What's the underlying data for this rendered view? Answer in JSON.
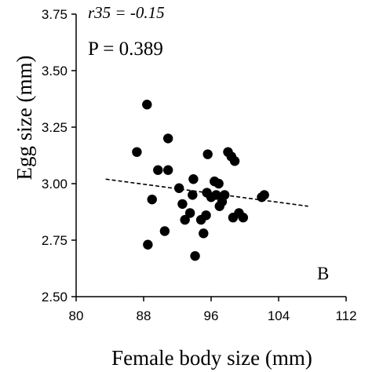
{
  "chart_data": {
    "type": "scatter",
    "title": "",
    "xlabel": "Female body size (mm)",
    "ylabel": "Egg size (mm)",
    "xlim": [
      80,
      112
    ],
    "ylim": [
      2.5,
      3.75
    ],
    "xticks": [
      "80",
      "88",
      "96",
      "104",
      "112"
    ],
    "yticks": [
      "2.50",
      "2.75",
      "3.00",
      "3.25",
      "3.50",
      "3.75"
    ],
    "grid": false,
    "annotations": {
      "r_label": "r35 = -0.15",
      "p_label": "P = 0.389",
      "panel_label": "B"
    },
    "trendline": {
      "style": "dashed",
      "x": [
        83.5,
        107.5
      ],
      "y": [
        3.02,
        2.9
      ]
    },
    "series": [
      {
        "points": [
          {
            "x": 87.2,
            "y": 3.14
          },
          {
            "x": 88.4,
            "y": 3.35
          },
          {
            "x": 88.5,
            "y": 2.73
          },
          {
            "x": 89.0,
            "y": 2.93
          },
          {
            "x": 89.7,
            "y": 3.06
          },
          {
            "x": 90.5,
            "y": 2.79
          },
          {
            "x": 90.9,
            "y": 3.06
          },
          {
            "x": 90.9,
            "y": 3.2
          },
          {
            "x": 92.2,
            "y": 2.98
          },
          {
            "x": 92.6,
            "y": 2.91
          },
          {
            "x": 92.9,
            "y": 2.84
          },
          {
            "x": 93.5,
            "y": 2.87
          },
          {
            "x": 93.8,
            "y": 2.95
          },
          {
            "x": 93.9,
            "y": 3.02
          },
          {
            "x": 94.1,
            "y": 2.68
          },
          {
            "x": 94.8,
            "y": 2.84
          },
          {
            "x": 95.1,
            "y": 2.78
          },
          {
            "x": 95.4,
            "y": 2.86
          },
          {
            "x": 95.5,
            "y": 2.96
          },
          {
            "x": 95.6,
            "y": 3.13
          },
          {
            "x": 96.0,
            "y": 2.94
          },
          {
            "x": 96.4,
            "y": 3.01
          },
          {
            "x": 96.6,
            "y": 2.95
          },
          {
            "x": 96.9,
            "y": 3.0
          },
          {
            "x": 97.0,
            "y": 2.9
          },
          {
            "x": 97.3,
            "y": 2.92
          },
          {
            "x": 97.6,
            "y": 2.95
          },
          {
            "x": 98.0,
            "y": 3.14
          },
          {
            "x": 98.4,
            "y": 3.12
          },
          {
            "x": 98.6,
            "y": 2.85
          },
          {
            "x": 98.8,
            "y": 3.1
          },
          {
            "x": 99.3,
            "y": 2.87
          },
          {
            "x": 99.8,
            "y": 2.85
          },
          {
            "x": 102.0,
            "y": 2.94
          },
          {
            "x": 102.3,
            "y": 2.95
          }
        ]
      }
    ]
  },
  "styles": {
    "axis_color": "#000000",
    "point_color": "#000000"
  }
}
